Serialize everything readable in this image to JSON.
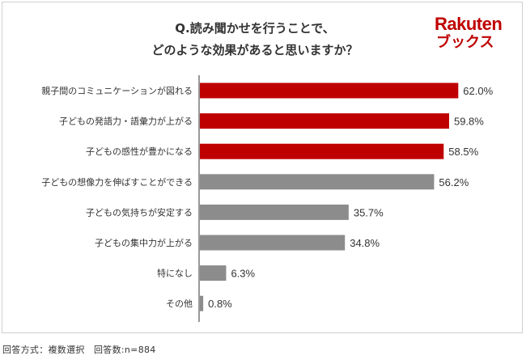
{
  "title_line1": "Q.読み聞かせを行うことで、",
  "title_line2": "どのような効果があると思いますか？",
  "logo": {
    "line1": "Rakuten",
    "line2": "ブックス"
  },
  "footnote": "回答方式：複数選択　回答数:n=884",
  "colors": {
    "highlight": "#bf0000",
    "normal": "#8c8c8c",
    "axis": "#333333",
    "text": "#333333"
  },
  "chart_data": {
    "type": "bar",
    "orientation": "horizontal",
    "title": "Q.読み聞かせを行うことで、どのような効果があると思いますか？",
    "categories": [
      "親子間のコミュニケーションが図れる",
      "子どもの発語力・語彙力が上がる",
      "子どもの感性が豊かになる",
      "子どもの想像力を伸ばすことができる",
      "子どもの気持ちが安定する",
      "子どもの集中力が上がる",
      "特になし",
      "その他"
    ],
    "values": [
      62.0,
      59.8,
      58.5,
      56.2,
      35.7,
      34.8,
      6.3,
      0.8
    ],
    "value_labels": [
      "62.0%",
      "59.8%",
      "58.5%",
      "56.2%",
      "35.7%",
      "34.8%",
      "6.3%",
      "0.8%"
    ],
    "highlighted": [
      true,
      true,
      true,
      false,
      false,
      false,
      false,
      false
    ],
    "unit": "%",
    "xlim": [
      0,
      100
    ]
  }
}
